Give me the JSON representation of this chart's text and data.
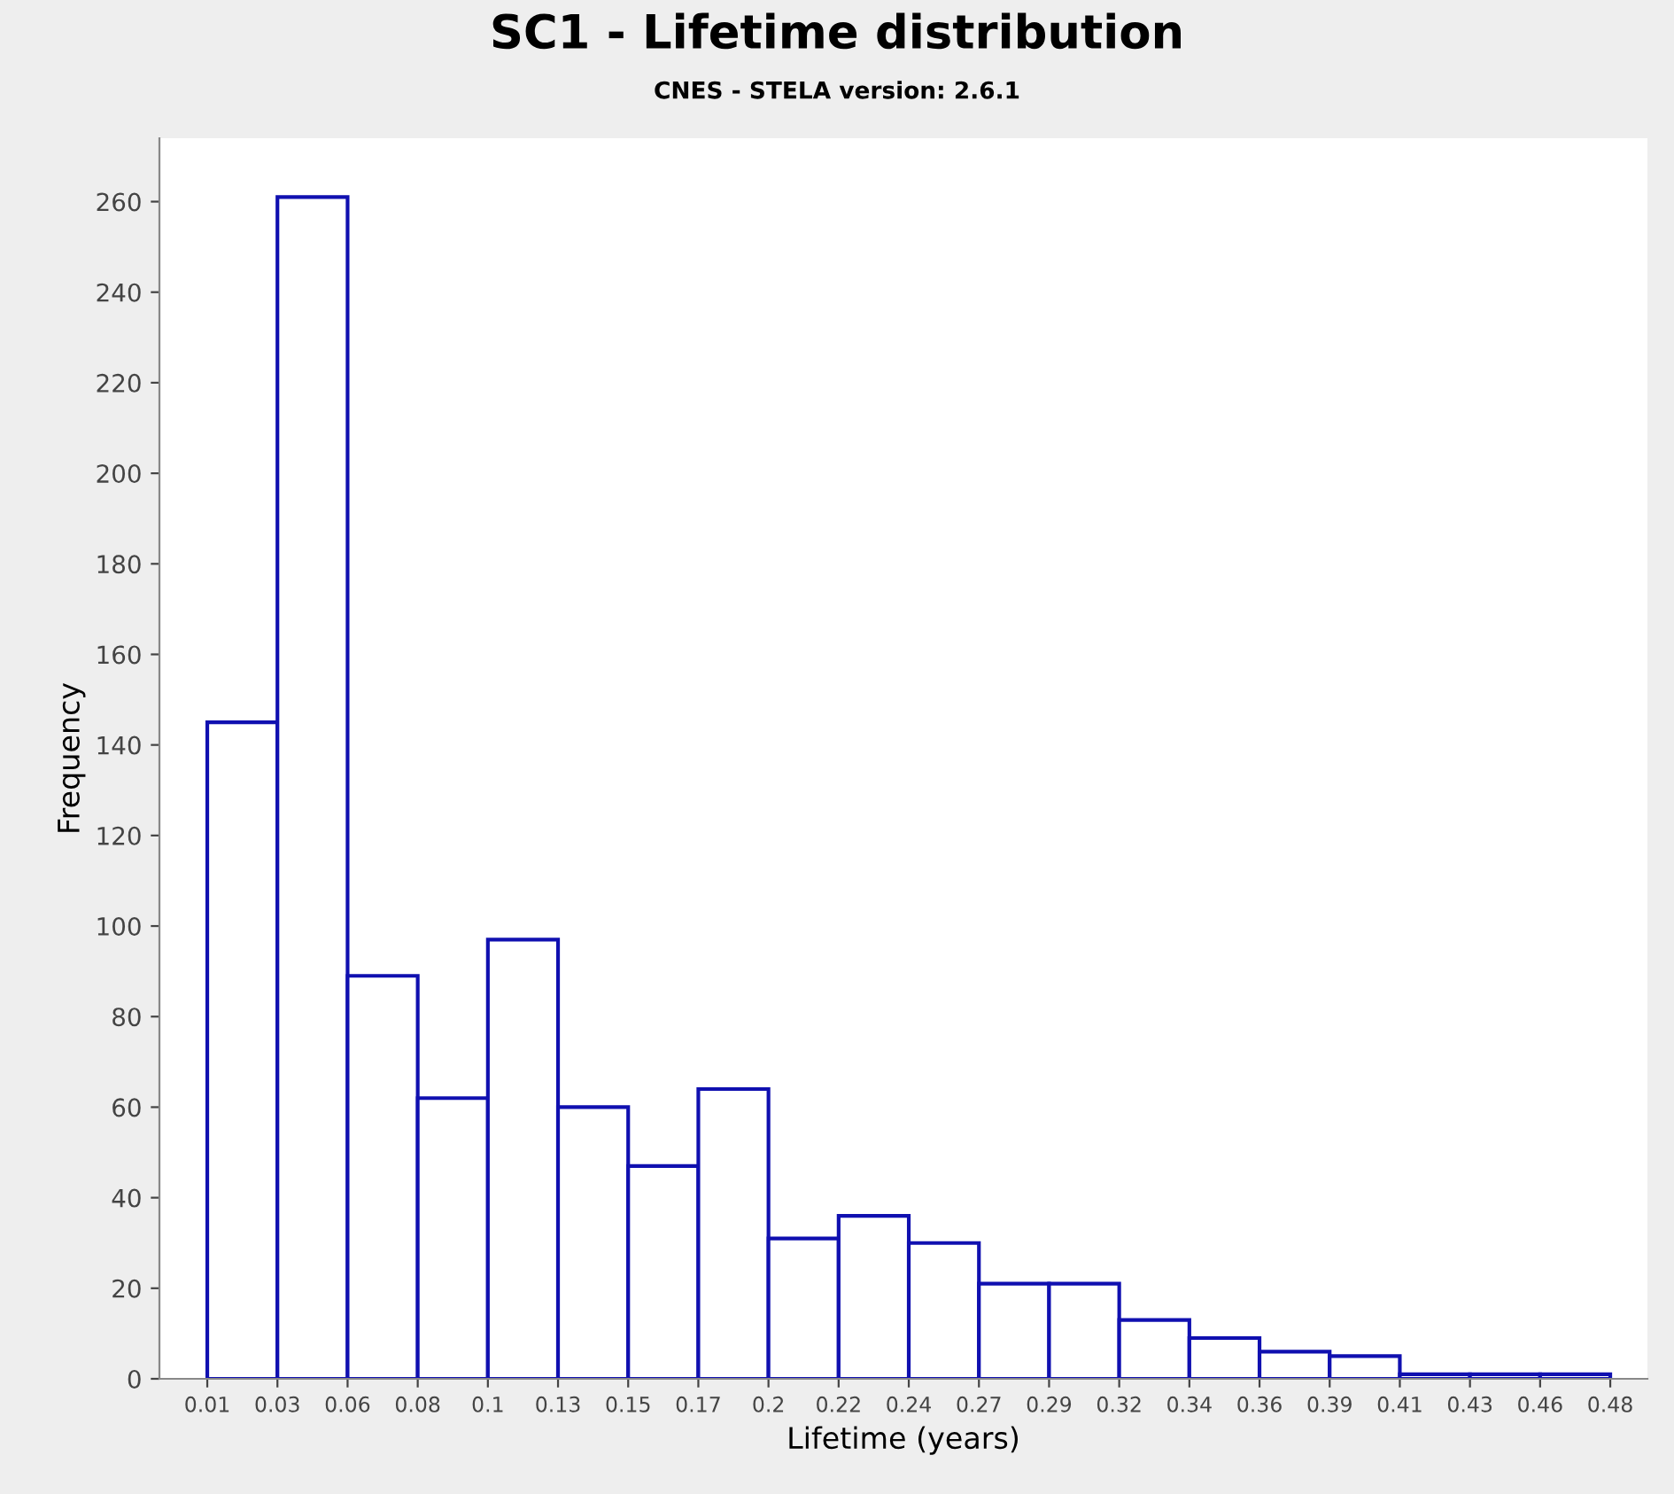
{
  "chart_data": {
    "type": "histogram",
    "title": "SC1 - Lifetime distribution",
    "subtitle": "CNES - STELA version: 2.6.1",
    "xlabel": "Lifetime (years)",
    "ylabel": "Frequency",
    "bins": [
      0.0085,
      0.0321,
      0.0557,
      0.0793,
      0.1029,
      0.1265,
      0.1501,
      0.1737,
      0.1973,
      0.2209,
      0.2445,
      0.2681,
      0.2917,
      0.3153,
      0.3389,
      0.3625,
      0.3861,
      0.4097,
      0.4333,
      0.4569,
      0.4805
    ],
    "values": [
      145,
      261,
      89,
      62,
      97,
      60,
      47,
      64,
      31,
      36,
      30,
      21,
      21,
      13,
      9,
      6,
      5,
      1,
      1,
      1
    ],
    "color": "#1010b0",
    "xlim": [
      -0.0076,
      0.493
    ],
    "ylim": [
      0,
      274
    ],
    "xticks": [
      {
        "value": 0.0085,
        "label": "0.01"
      },
      {
        "value": 0.0321,
        "label": "0.03"
      },
      {
        "value": 0.0557,
        "label": "0.06"
      },
      {
        "value": 0.0793,
        "label": "0.08"
      },
      {
        "value": 0.1029,
        "label": "0.1"
      },
      {
        "value": 0.1265,
        "label": "0.13"
      },
      {
        "value": 0.1501,
        "label": "0.15"
      },
      {
        "value": 0.1737,
        "label": "0.17"
      },
      {
        "value": 0.1973,
        "label": "0.2"
      },
      {
        "value": 0.2209,
        "label": "0.22"
      },
      {
        "value": 0.2445,
        "label": "0.24"
      },
      {
        "value": 0.2681,
        "label": "0.27"
      },
      {
        "value": 0.2917,
        "label": "0.29"
      },
      {
        "value": 0.3153,
        "label": "0.32"
      },
      {
        "value": 0.3389,
        "label": "0.34"
      },
      {
        "value": 0.3625,
        "label": "0.36"
      },
      {
        "value": 0.3861,
        "label": "0.39"
      },
      {
        "value": 0.4097,
        "label": "0.41"
      },
      {
        "value": 0.4333,
        "label": "0.43"
      },
      {
        "value": 0.4569,
        "label": "0.46"
      },
      {
        "value": 0.4805,
        "label": "0.48"
      }
    ],
    "yticks": [
      0,
      20,
      40,
      60,
      80,
      100,
      120,
      140,
      160,
      180,
      200,
      220,
      240,
      260
    ],
    "grid": false
  }
}
